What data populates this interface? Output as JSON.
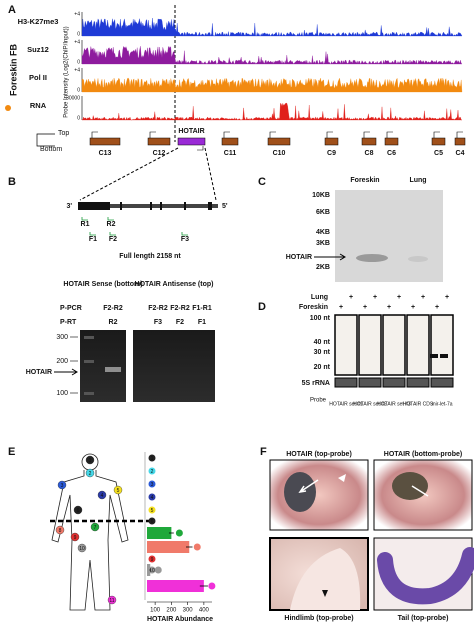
{
  "panel_a": {
    "label": "A",
    "sample": "Foreskin FB",
    "y_axis_label": "Probe Intensity (Log2(ChIP/Input))",
    "tracks": [
      {
        "name": "H3-K27me3",
        "color": "#1f3ad6",
        "label_color": "#1a9a3a",
        "scale_top": "+4",
        "scale_bottom": "0"
      },
      {
        "name": "Suz12",
        "color": "#8e1b9e",
        "label_color": "#1a9a3a",
        "scale_top": "+4",
        "scale_bottom": "0"
      },
      {
        "name": "Pol II",
        "color": "#f28a10",
        "label_color": "#d42020",
        "scale_top": "+4",
        "scale_bottom": "0"
      },
      {
        "name": "RNA",
        "color": "#e0201b",
        "label_color": "#d42020",
        "scale_top": "30000",
        "scale_bottom": "0"
      }
    ],
    "strand_top": "Top",
    "strand_bottom": "Bottom",
    "genes": [
      "C13",
      "C12",
      "HOTAIR",
      "C11",
      "C10",
      "C9",
      "C8",
      "C6",
      "C5",
      "C4"
    ]
  },
  "panel_b": {
    "label": "B",
    "end_left": "3'",
    "end_right": "5'",
    "primers": [
      "R1",
      "R2",
      "F1",
      "F2",
      "F3"
    ],
    "full_length": "Full length 2158 nt",
    "sense_title": "HOTAIR Sense (bottom)",
    "antisense_title": "HOTAIR Antisense (top)",
    "row_pcr": "P-PCR",
    "row_rt": "P-RT",
    "lanes": [
      {
        "pcr": "F2-R2",
        "rt": "R2"
      },
      {
        "pcr": "F2-R2",
        "rt": "F3"
      },
      {
        "pcr": "F2-R2",
        "rt": "F2"
      },
      {
        "pcr": "F1-R1",
        "rt": "F1"
      }
    ],
    "markers": [
      300,
      200,
      100
    ],
    "band_label": "HOTAIR"
  },
  "panel_c": {
    "label": "C",
    "columns": [
      "Foreskin",
      "Lung"
    ],
    "markers": [
      "10KB",
      "6KB",
      "4KB",
      "3KB",
      "2KB"
    ],
    "band_label": "HOTAIR"
  },
  "panel_d": {
    "label": "D",
    "row_lung": "Lung",
    "row_foreskin": "Foreskin",
    "lung_marks": [
      "+",
      "+",
      "+",
      "+",
      "+"
    ],
    "foreskin_marks": [
      "+",
      "+",
      "+",
      "+",
      "+"
    ],
    "markers": [
      "100 nt",
      "40 nt",
      "30 nt",
      "20 nt"
    ],
    "loading": "5S rRNA",
    "probe_label": "Probe",
    "probes": [
      "HOTAIR set #1",
      "HOTAIR set #2",
      "HOTAIR set #3",
      "HOTAIR CDS",
      "mir-let-7a"
    ]
  },
  "panel_e": {
    "label": "E",
    "axis_label": "HOTAIR Abundance",
    "xlim": [
      50,
      450
    ],
    "xticks": [
      100,
      200,
      300,
      400
    ],
    "sites": [
      {
        "id": 1,
        "color": "#222222"
      },
      {
        "id": 2,
        "color": "#45d8e8"
      },
      {
        "id": 3,
        "color": "#2a5ad8"
      },
      {
        "id": 4,
        "color": "#2a3aa8"
      },
      {
        "id": 5,
        "color": "#f4e020"
      },
      {
        "id": 6,
        "color": "#222222"
      },
      {
        "id": 7,
        "color": "#1fa83a"
      },
      {
        "id": 8,
        "color": "#f07a6a"
      },
      {
        "id": 9,
        "color": "#e03030"
      },
      {
        "id": 10,
        "color": "#999999"
      },
      {
        "id": 11,
        "color": "#f030d8"
      }
    ],
    "bars": [
      {
        "site": 7,
        "value": 200,
        "error": 15
      },
      {
        "site": 8,
        "value": 310,
        "error": 20
      },
      {
        "site": 10,
        "value": 70,
        "error": 5
      },
      {
        "site": 11,
        "value": 400,
        "error": 25
      }
    ]
  },
  "panel_f": {
    "label": "F",
    "captions": [
      "HOTAIR (top-probe)",
      "HOTAIR (bottom-probe)",
      "Hindlimb (top-probe)",
      "Tail (top-probe)"
    ]
  }
}
